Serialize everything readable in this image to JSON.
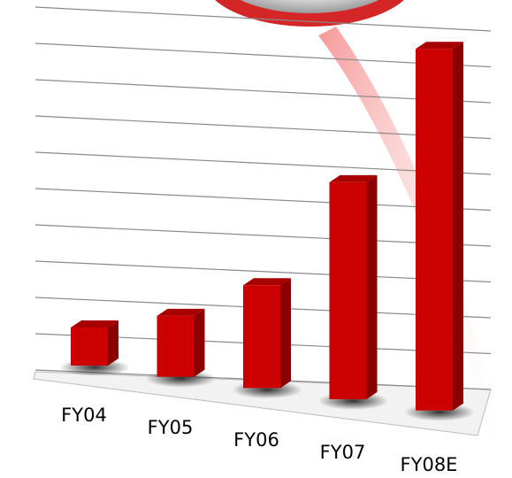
{
  "chart_data": {
    "type": "bar",
    "categories": [
      "FY04",
      "FY05",
      "FY06",
      "FY07",
      "FY08E"
    ],
    "values": [
      1,
      1.6,
      2.7,
      5.7,
      9.5
    ],
    "color": "#cc0000",
    "ylim": [
      0,
      10
    ],
    "yticks": [
      0,
      1,
      2,
      3,
      4,
      5,
      6,
      7,
      8,
      9,
      10
    ],
    "grid": true
  }
}
